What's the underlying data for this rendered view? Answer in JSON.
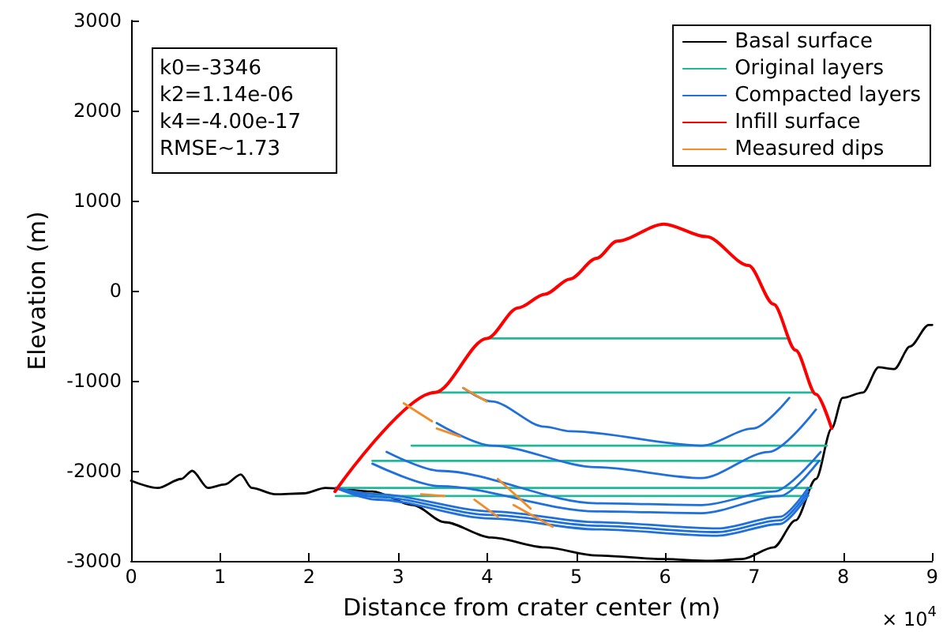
{
  "chart_data": {
    "type": "line",
    "xlabel": "Distance from crater center (m)",
    "ylabel": "Elevation (m)",
    "annotations": [
      "k0=-3346\nk2=1.14e-06\nk4=-4.00e-17\nRMSE~1.73",
      "× 10$^{4}$"
    ],
    "xlim": [
      0,
      9
    ],
    "xticks": [
      0,
      1,
      2,
      3,
      4,
      5,
      6,
      7,
      8,
      9
    ],
    "ylim": [
      -3000,
      3000
    ],
    "yticks": [
      -3000,
      -2000,
      -1000,
      0,
      1000,
      2000,
      3000
    ],
    "grid": false,
    "legend": "top right",
    "marker": "none",
    "line_style": "solid",
    "series": [
      {
        "name": "Basal surface",
        "color": "#000000",
        "x": [
          0,
          0.3,
          0.563,
          0.687,
          0.863,
          1.056,
          1.232,
          1.356,
          1.62,
          1.937,
          2.183,
          2.711,
          3.169,
          3.521,
          4.049,
          4.648,
          5.229,
          5.986,
          6.496,
          6.866,
          7.218,
          7.465,
          7.694,
          7.87,
          7.993,
          8.222,
          8.398,
          8.574,
          8.75,
          8.961,
          9
        ],
        "values": [
          -2110,
          -2190,
          -2090,
          -2000,
          -2190,
          -2150,
          -2040,
          -2190,
          -2260,
          -2250,
          -2190,
          -2230,
          -2380,
          -2570,
          -2740,
          -2850,
          -2940,
          -2980,
          -3000,
          -2980,
          -2850,
          -2550,
          -2090,
          -1530,
          -1190,
          -1130,
          -850,
          -870,
          -620,
          -380,
          -380
        ]
      },
      {
        "name": "Original layers",
        "color": "#1fb89a",
        "x": [
          3.996,
          7.394
        ],
        "values": [
          -530,
          -530
        ]
      },
      {
        "name": null,
        "color": "#1fb89a",
        "x": [
          3.415,
          7.659
        ],
        "values": [
          -1130,
          -1130
        ]
      },
      {
        "name": null,
        "color": "#1fb89a",
        "x": [
          3.151,
          7.817
        ],
        "values": [
          -1720,
          -1720
        ]
      },
      {
        "name": null,
        "color": "#1fb89a",
        "x": [
          2.711,
          7.747
        ],
        "values": [
          -1890,
          -1890
        ]
      },
      {
        "name": null,
        "color": "#1fb89a",
        "x": [
          2.3,
          7.641
        ],
        "values": [
          -2190,
          -2190
        ]
      },
      {
        "name": null,
        "color": "#1fb89a",
        "x": [
          2.3,
          7.606
        ],
        "values": [
          -2280,
          -2280
        ]
      },
      {
        "name": "Compacted layers",
        "color": "#1f6fdc",
        "x": [
          3.732,
          4.049,
          4.648,
          4.93,
          6.408,
          6.989,
          7.394
        ],
        "values": [
          -1080,
          -1230,
          -1510,
          -1560,
          -1720,
          -1530,
          -1190
        ]
      },
      {
        "name": null,
        "color": "#1f6fdc",
        "x": [
          3.433,
          4.049,
          5.229,
          6.408,
          7.165,
          7.694
        ],
        "values": [
          -1470,
          -1720,
          -1960,
          -2080,
          -1790,
          -1320
        ]
      },
      {
        "name": null,
        "color": "#1f6fdc",
        "x": [
          2.87,
          3.468,
          5.229,
          6.408,
          7.218,
          7.746
        ],
        "values": [
          -1790,
          -2000,
          -2360,
          -2380,
          -2230,
          -1790
        ]
      },
      {
        "name": null,
        "color": "#1f6fdc",
        "x": [
          2.711,
          3.468,
          5.229,
          6.408,
          7.289,
          7.729
        ],
        "values": [
          -1920,
          -2170,
          -2450,
          -2470,
          -2280,
          -1890
        ]
      },
      {
        "name": null,
        "color": "#1f6fdc",
        "x": [
          2.3,
          2.764,
          4.049,
          5.229,
          6.585,
          7.289,
          7.606
        ],
        "values": [
          -2190,
          -2260,
          -2450,
          -2570,
          -2640,
          -2510,
          -2190
        ]
      },
      {
        "name": null,
        "color": "#1f6fdc",
        "x": [
          2.3,
          2.764,
          4.049,
          5.229,
          6.585,
          7.289,
          7.606
        ],
        "values": [
          -2190,
          -2290,
          -2490,
          -2610,
          -2680,
          -2550,
          -2230
        ]
      },
      {
        "name": null,
        "color": "#1f6fdc",
        "x": [
          2.3,
          2.764,
          4.049,
          5.229,
          6.585,
          7.289,
          7.606
        ],
        "values": [
          -2190,
          -2320,
          -2530,
          -2650,
          -2720,
          -2590,
          -2270
        ]
      },
      {
        "name": "Infill surface",
        "color": "#ff0000",
        "x": [
          2.29,
          3.415,
          3.996,
          4.349,
          4.648,
          4.93,
          5.229,
          5.458,
          5.986,
          6.461,
          6.937,
          7.218,
          7.465,
          7.694,
          7.87
        ],
        "values": [
          -2230,
          -1130,
          -530,
          -190,
          -40,
          130,
          360,
          550,
          740,
          600,
          280,
          -150,
          -660,
          -1150,
          -1530
        ]
      },
      {
        "name": "Measured dips",
        "color": "#f28c28",
        "x": [
          3.063,
          3.38
        ],
        "values": [
          -1250,
          -1450
        ]
      },
      {
        "name": null,
        "color": "#f28c28",
        "x": [
          3.732,
          3.996
        ],
        "values": [
          -1080,
          -1230
        ]
      },
      {
        "name": null,
        "color": "#f28c28",
        "x": [
          3.433,
          3.697
        ],
        "values": [
          -1530,
          -1620
        ]
      },
      {
        "name": null,
        "color": "#f28c28",
        "x": [
          4.12,
          4.489
        ],
        "values": [
          -2090,
          -2420
        ]
      },
      {
        "name": null,
        "color": "#f28c28",
        "x": [
          3.856,
          4.12
        ],
        "values": [
          -2320,
          -2510
        ]
      },
      {
        "name": null,
        "color": "#f28c28",
        "x": [
          4.296,
          4.736
        ],
        "values": [
          -2380,
          -2620
        ]
      },
      {
        "name": null,
        "color": "#f28c28",
        "x": [
          3.257,
          3.521
        ],
        "values": [
          -2260,
          -2280
        ]
      }
    ]
  }
}
